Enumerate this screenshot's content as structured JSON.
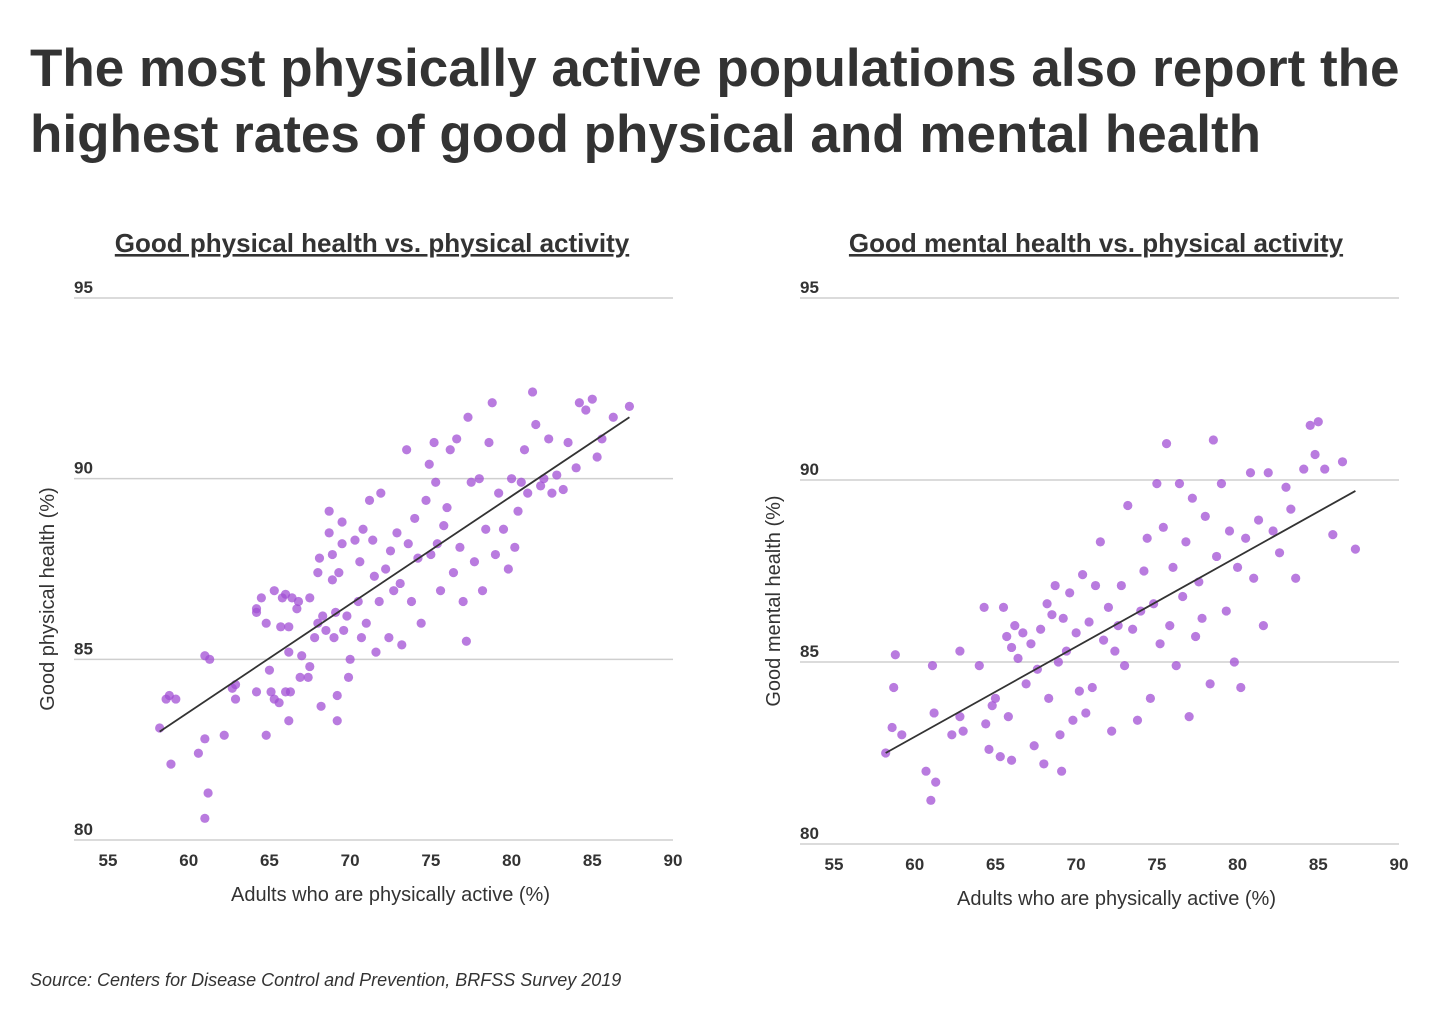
{
  "title": "The most physically active populations also report the highest rates of good physical and mental health",
  "source": "Source: Centers for Disease Control and Prevention, BRFSS Survey 2019",
  "chart_data": [
    {
      "type": "scatter",
      "title": "Good physical health vs. physical activity",
      "xlabel": "Adults who are physically active (%)",
      "ylabel": "Good physical health (%)",
      "color": "#a14fd4",
      "trend_color": "#333333",
      "xlim": [
        55,
        90
      ],
      "ylim": [
        80,
        95
      ],
      "xticks": [
        55,
        60,
        65,
        70,
        75,
        80,
        85,
        90
      ],
      "yticks": [
        80,
        85,
        90,
        95
      ],
      "grid": true,
      "x": [
        58.2,
        58.6,
        58.8,
        59.2,
        58.9,
        60.6,
        61.0,
        61.2,
        61.0,
        61.0,
        61.3,
        62.2,
        62.7,
        62.9,
        62.9,
        64.2,
        64.2,
        64.2,
        64.5,
        64.8,
        64.8,
        65.0,
        65.1,
        65.3,
        65.3,
        65.6,
        65.7,
        65.8,
        66.0,
        66.0,
        66.2,
        66.2,
        66.3,
        66.2,
        66.4,
        66.7,
        66.8,
        66.9,
        67.0,
        67.4,
        67.5,
        67.5,
        67.8,
        68.0,
        68.0,
        68.1,
        68.2,
        68.3,
        68.5,
        68.7,
        68.7,
        68.9,
        68.9,
        69.0,
        69.1,
        69.2,
        69.2,
        69.3,
        69.5,
        69.5,
        69.6,
        69.8,
        69.9,
        70.0,
        70.3,
        70.5,
        70.6,
        70.7,
        70.8,
        71.0,
        71.2,
        71.4,
        71.5,
        71.6,
        71.8,
        71.9,
        72.2,
        72.4,
        72.5,
        72.7,
        72.9,
        73.1,
        73.2,
        73.5,
        73.6,
        73.8,
        74.0,
        74.2,
        74.4,
        74.7,
        74.9,
        75.0,
        75.2,
        75.3,
        75.4,
        75.6,
        75.8,
        76.0,
        76.2,
        76.4,
        76.6,
        76.8,
        77.0,
        77.2,
        77.3,
        77.5,
        77.7,
        78.0,
        78.2,
        78.4,
        78.6,
        78.8,
        79.0,
        79.2,
        79.5,
        79.8,
        80.0,
        80.2,
        80.4,
        80.6,
        80.8,
        81.0,
        81.3,
        81.5,
        81.8,
        82.0,
        82.3,
        82.5,
        82.8,
        83.2,
        83.5,
        84.0,
        84.2,
        84.6,
        85.0,
        85.3,
        85.6,
        86.3,
        87.3
      ],
      "y": [
        83.1,
        83.9,
        84.0,
        83.9,
        82.1,
        82.4,
        82.8,
        81.3,
        80.6,
        85.1,
        85.0,
        82.9,
        84.2,
        83.9,
        84.3,
        84.1,
        86.3,
        86.4,
        86.7,
        82.9,
        86.0,
        84.7,
        84.1,
        86.9,
        83.9,
        83.8,
        85.9,
        86.7,
        86.8,
        84.1,
        85.2,
        83.3,
        84.1,
        85.9,
        86.7,
        86.4,
        86.6,
        84.5,
        85.1,
        84.5,
        86.7,
        84.8,
        85.6,
        86.0,
        87.4,
        87.8,
        83.7,
        86.2,
        85.8,
        89.1,
        88.5,
        87.2,
        87.9,
        85.6,
        86.3,
        84.0,
        83.3,
        87.4,
        88.8,
        88.2,
        85.8,
        86.2,
        84.5,
        85.0,
        88.3,
        86.6,
        87.7,
        85.6,
        88.6,
        86.0,
        89.4,
        88.3,
        87.3,
        85.2,
        86.6,
        89.6,
        87.5,
        85.6,
        88.0,
        86.9,
        88.5,
        87.1,
        85.4,
        90.8,
        88.2,
        86.6,
        88.9,
        87.8,
        86.0,
        89.4,
        90.4,
        87.9,
        91.0,
        89.9,
        88.2,
        86.9,
        88.7,
        89.2,
        90.8,
        87.4,
        91.1,
        88.1,
        86.6,
        85.5,
        91.7,
        89.9,
        87.7,
        90.0,
        86.9,
        88.6,
        91.0,
        92.1,
        87.9,
        89.6,
        88.6,
        87.5,
        90.0,
        88.1,
        89.1,
        89.9,
        90.8,
        89.6,
        92.4,
        91.5,
        89.8,
        90.0,
        91.1,
        89.6,
        90.1,
        89.7,
        91.0,
        90.3,
        92.1,
        91.9,
        92.2,
        90.6,
        91.1,
        91.7,
        92.0
      ],
      "trendline": {
        "x": [
          58.2,
          87.3
        ],
        "y": [
          83.0,
          91.7
        ]
      }
    },
    {
      "type": "scatter",
      "title": "Good mental health vs. physical activity",
      "xlabel": "Adults who are physically active (%)",
      "ylabel": "Good mental health (%)",
      "color": "#a14fd4",
      "trend_color": "#333333",
      "xlim": [
        55,
        90
      ],
      "ylim": [
        80,
        95
      ],
      "xticks": [
        55,
        60,
        65,
        70,
        75,
        80,
        85,
        90
      ],
      "yticks": [
        80,
        85,
        90,
        95
      ],
      "grid": true,
      "x": [
        58.2,
        58.6,
        58.7,
        58.8,
        59.2,
        60.7,
        61.0,
        61.1,
        61.2,
        61.3,
        62.3,
        62.8,
        62.8,
        63.0,
        64.0,
        64.3,
        64.4,
        64.6,
        64.8,
        65.0,
        65.3,
        65.5,
        65.7,
        65.8,
        66.0,
        66.0,
        66.2,
        66.4,
        66.7,
        66.9,
        67.2,
        67.4,
        67.6,
        67.8,
        68.0,
        68.2,
        68.3,
        68.5,
        68.7,
        68.9,
        69.0,
        69.1,
        69.2,
        69.4,
        69.6,
        69.8,
        70.0,
        70.2,
        70.4,
        70.6,
        70.8,
        71.0,
        71.2,
        71.5,
        71.7,
        72.0,
        72.2,
        72.4,
        72.6,
        72.8,
        73.0,
        73.2,
        73.5,
        73.8,
        74.0,
        74.2,
        74.4,
        74.6,
        74.8,
        75.0,
        75.2,
        75.4,
        75.6,
        75.8,
        76.0,
        76.2,
        76.4,
        76.6,
        76.8,
        77.0,
        77.2,
        77.4,
        77.6,
        77.8,
        78.0,
        78.3,
        78.5,
        78.7,
        79.0,
        79.3,
        79.5,
        79.8,
        80.0,
        80.2,
        80.5,
        80.8,
        81.0,
        81.3,
        81.6,
        81.9,
        82.2,
        82.6,
        83.0,
        83.3,
        83.6,
        84.1,
        84.5,
        84.8,
        85.0,
        85.4,
        85.9,
        86.5,
        87.3
      ],
      "y": [
        82.5,
        83.2,
        84.3,
        85.2,
        83.0,
        82.0,
        81.2,
        84.9,
        83.6,
        81.7,
        83.0,
        83.5,
        85.3,
        83.1,
        84.9,
        86.5,
        83.3,
        82.6,
        83.8,
        84.0,
        82.4,
        86.5,
        85.7,
        83.5,
        82.3,
        85.4,
        86.0,
        85.1,
        85.8,
        84.4,
        85.5,
        82.7,
        84.8,
        85.9,
        82.2,
        86.6,
        84.0,
        86.3,
        87.1,
        85.0,
        83.0,
        82.0,
        86.2,
        85.3,
        86.9,
        83.4,
        85.8,
        84.2,
        87.4,
        83.6,
        86.1,
        84.3,
        87.1,
        88.3,
        85.6,
        86.5,
        83.1,
        85.3,
        86.0,
        87.1,
        84.9,
        89.3,
        85.9,
        83.4,
        86.4,
        87.5,
        88.4,
        84.0,
        86.6,
        89.9,
        85.5,
        88.7,
        91.0,
        86.0,
        87.6,
        84.9,
        89.9,
        86.8,
        88.3,
        83.5,
        89.5,
        85.7,
        87.2,
        86.2,
        89.0,
        84.4,
        91.1,
        87.9,
        89.9,
        86.4,
        88.6,
        85.0,
        87.6,
        84.3,
        88.4,
        90.2,
        87.3,
        88.9,
        86.0,
        90.2,
        88.6,
        88.0,
        89.8,
        89.2,
        87.3,
        90.3,
        91.5,
        90.7,
        91.6,
        90.3,
        88.5,
        90.5,
        88.1
      ],
      "trendline": {
        "x": [
          58.2,
          87.3
        ],
        "y": [
          82.5,
          89.7
        ]
      }
    }
  ]
}
